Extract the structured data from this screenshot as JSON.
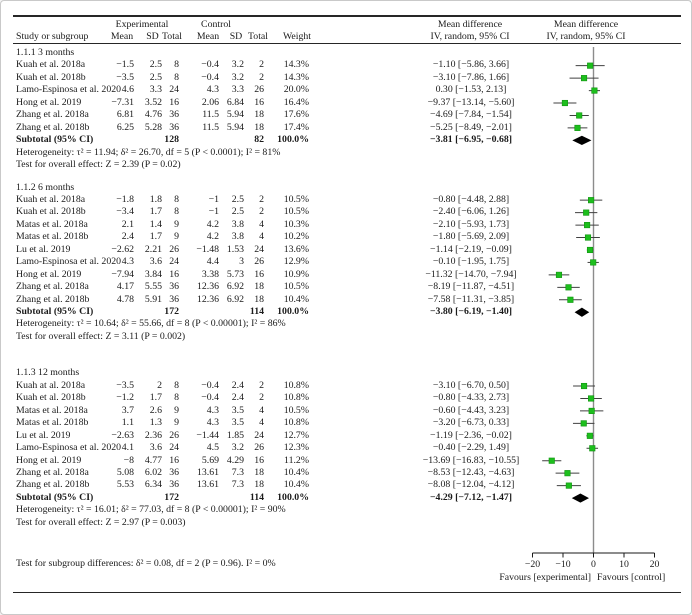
{
  "header": {
    "study_col": "Study or subgroup",
    "experimental": "Experimental",
    "control": "Control",
    "mean": "Mean",
    "sd": "SD",
    "total": "Total",
    "weight": "Weight",
    "md_title": "Mean difference",
    "md_sub": "IV, random, 95% CI"
  },
  "footer": {
    "subgroup_test": "Test for subgroup differences: δ² = 0.08, df = 2 (P = 0.96). I² = 0%",
    "favours_left": "Favours [experimental]",
    "favours_right": "Favours [control]"
  },
  "chart_data": {
    "type": "scatter",
    "variant": "forest-plot-mean-difference",
    "effect_measure": "Mean difference IV, random, 95% CI",
    "xlim": [
      -20,
      20
    ],
    "x_ticks": [
      -20,
      -10,
      0,
      10,
      20
    ],
    "zero_line": 0,
    "colors": {
      "marker": "#1dbf1d",
      "marker_edge": "#129312",
      "diamond": "#000000",
      "zero_line": "#8c8c8c",
      "ci_line": "#404040",
      "axis": "#1a1a1a"
    },
    "groups": [
      {
        "label": "1.1.1 3 months",
        "studies": [
          {
            "study": "Kuah et al. 2018a",
            "e_mean": "−1.5",
            "e_sd": "2.5",
            "e_total": "8",
            "c_mean": "−0.4",
            "c_sd": "3.2",
            "c_total": "2",
            "weight": "14.3%",
            "ci": "−1.10 [−5.86, 3.66]",
            "md": -1.1,
            "lo": -5.86,
            "hi": 3.66
          },
          {
            "study": "Kuah et al. 2018b",
            "e_mean": "−3.5",
            "e_sd": "2.5",
            "e_total": "8",
            "c_mean": "−0.4",
            "c_sd": "3.2",
            "c_total": "2",
            "weight": "14.3%",
            "ci": "−3.10 [−7.86, 1.66]",
            "md": -3.1,
            "lo": -7.86,
            "hi": 1.66
          },
          {
            "study": "Lamo-Espinosa et al. 2020",
            "e_mean": "4.6",
            "e_sd": "3.3",
            "e_total": "24",
            "c_mean": "4.3",
            "c_sd": "3.3",
            "c_total": "26",
            "weight": "20.0%",
            "ci": "0.30 [−1.53, 2.13]",
            "md": 0.3,
            "lo": -1.53,
            "hi": 2.13
          },
          {
            "study": "Hong et al. 2019",
            "e_mean": "−7.31",
            "e_sd": "3.52",
            "e_total": "16",
            "c_mean": "2.06",
            "c_sd": "6.84",
            "c_total": "16",
            "weight": "16.4%",
            "ci": "−9.37 [−13.14, −5.60]",
            "md": -9.37,
            "lo": -13.14,
            "hi": -5.6
          },
          {
            "study": "Zhang et al. 2018a",
            "e_mean": "6.81",
            "e_sd": "4.76",
            "e_total": "36",
            "c_mean": "11.5",
            "c_sd": "5.94",
            "c_total": "18",
            "weight": "17.6%",
            "ci": "−4.69 [−7.84, −1.54]",
            "md": -4.69,
            "lo": -7.84,
            "hi": -1.54
          },
          {
            "study": "Zhang et al. 2018b",
            "e_mean": "6.25",
            "e_sd": "5.28",
            "e_total": "36",
            "c_mean": "11.5",
            "c_sd": "5.94",
            "c_total": "18",
            "weight": "17.4%",
            "ci": "−5.25 [−8.49, −2.01]",
            "md": -5.25,
            "lo": -8.49,
            "hi": -2.01
          }
        ],
        "subtotal": {
          "label": "Subtotal (95% CI)",
          "e_total": "128",
          "c_total": "82",
          "weight": "100.0%",
          "ci": "−3.81 [−6.95, −0.68]",
          "md": -3.81,
          "lo": -6.95,
          "hi": -0.68
        },
        "heterogeneity": "Heterogeneity: τ² = 11.94; δ² = 26.70, df = 5 (P < 0.0001); I² = 81%",
        "overall": "Test for overall effect: Z = 2.39 (P = 0.02)"
      },
      {
        "label": "1.1.2 6 months",
        "studies": [
          {
            "study": "Kuah et al. 2018a",
            "e_mean": "−1.8",
            "e_sd": "1.8",
            "e_total": "8",
            "c_mean": "−1",
            "c_sd": "2.5",
            "c_total": "2",
            "weight": "10.5%",
            "ci": "−0.80 [−4.48, 2.88]",
            "md": -0.8,
            "lo": -4.48,
            "hi": 2.88
          },
          {
            "study": "Kuah et al. 2018b",
            "e_mean": "−3.4",
            "e_sd": "1.7",
            "e_total": "8",
            "c_mean": "−1",
            "c_sd": "2.5",
            "c_total": "2",
            "weight": "10.5%",
            "ci": "−2.40 [−6.06, 1.26]",
            "md": -2.4,
            "lo": -6.06,
            "hi": 1.26
          },
          {
            "study": "Matas et al. 2018a",
            "e_mean": "2.1",
            "e_sd": "1.4",
            "e_total": "9",
            "c_mean": "4.2",
            "c_sd": "3.8",
            "c_total": "4",
            "weight": "10.3%",
            "ci": "−2.10 [−5.93, 1.73]",
            "md": -2.1,
            "lo": -5.93,
            "hi": 1.73
          },
          {
            "study": "Matas et al. 2018b",
            "e_mean": "2.4",
            "e_sd": "1.7",
            "e_total": "9",
            "c_mean": "4.2",
            "c_sd": "3.8",
            "c_total": "4",
            "weight": "10.2%",
            "ci": "−1.80 [−5.69, 2.09]",
            "md": -1.8,
            "lo": -5.69,
            "hi": 2.09
          },
          {
            "study": "Lu et al. 2019",
            "e_mean": "−2.62",
            "e_sd": "2.21",
            "e_total": "26",
            "c_mean": "−1.48",
            "c_sd": "1.53",
            "c_total": "24",
            "weight": "13.6%",
            "ci": "−1.14 [−2.19, −0.09]",
            "md": -1.14,
            "lo": -2.19,
            "hi": -0.09
          },
          {
            "study": "Lamo-Espinosa et al. 2020",
            "e_mean": "4.3",
            "e_sd": "3.6",
            "e_total": "24",
            "c_mean": "4.4",
            "c_sd": "3",
            "c_total": "26",
            "weight": "12.9%",
            "ci": "−0.10 [−1.95, 1.75]",
            "md": -0.1,
            "lo": -1.95,
            "hi": 1.75
          },
          {
            "study": "Hong et al. 2019",
            "e_mean": "−7.94",
            "e_sd": "3.84",
            "e_total": "16",
            "c_mean": "3.38",
            "c_sd": "5.73",
            "c_total": "16",
            "weight": "10.9%",
            "ci": "−11.32 [−14.70, −7.94]",
            "md": -11.32,
            "lo": -14.7,
            "hi": -7.94
          },
          {
            "study": "Zhang et al. 2018a",
            "e_mean": "4.17",
            "e_sd": "5.55",
            "e_total": "36",
            "c_mean": "12.36",
            "c_sd": "6.92",
            "c_total": "18",
            "weight": "10.5%",
            "ci": "−8.19 [−11.87, −4.51]",
            "md": -8.19,
            "lo": -11.87,
            "hi": -4.51
          },
          {
            "study": "Zhang et al. 2018b",
            "e_mean": "4.78",
            "e_sd": "5.91",
            "e_total": "36",
            "c_mean": "12.36",
            "c_sd": "6.92",
            "c_total": "18",
            "weight": "10.4%",
            "ci": "−7.58 [−11.31, −3.85]",
            "md": -7.58,
            "lo": -11.31,
            "hi": -3.85
          }
        ],
        "subtotal": {
          "label": "Subtotal (95% CI)",
          "e_total": "172",
          "c_total": "114",
          "weight": "100.0%",
          "ci": "−3.80 [−6.19, −1.40]",
          "md": -3.8,
          "lo": -6.19,
          "hi": -1.4
        },
        "heterogeneity": "Heterogeneity: τ² = 10.64; δ² = 55.66, df = 8 (P < 0.00001); I² = 86%",
        "overall": "Test for overall effect: Z = 3.11 (P = 0.002)"
      },
      {
        "label": "1.1.3 12 months",
        "studies": [
          {
            "study": "Kuah at al. 2018a",
            "e_mean": "−3.5",
            "e_sd": "2",
            "e_total": "8",
            "c_mean": "−0.4",
            "c_sd": "2.4",
            "c_total": "2",
            "weight": "10.8%",
            "ci": "−3.10 [−6.70, 0.50]",
            "md": -3.1,
            "lo": -6.7,
            "hi": 0.5
          },
          {
            "study": "Kuah et al. 2018b",
            "e_mean": "−1.2",
            "e_sd": "1.7",
            "e_total": "8",
            "c_mean": "−0.4",
            "c_sd": "2.4",
            "c_total": "2",
            "weight": "10.8%",
            "ci": "−0.80 [−4.33, 2.73]",
            "md": -0.8,
            "lo": -4.33,
            "hi": 2.73
          },
          {
            "study": "Matas et al. 2018a",
            "e_mean": "3.7",
            "e_sd": "2.6",
            "e_total": "9",
            "c_mean": "4.3",
            "c_sd": "3.5",
            "c_total": "4",
            "weight": "10.5%",
            "ci": "−0.60 [−4.43, 3.23]",
            "md": -0.6,
            "lo": -4.43,
            "hi": 3.23
          },
          {
            "study": "Matas et al. 2018b",
            "e_mean": "1.1",
            "e_sd": "1.3",
            "e_total": "9",
            "c_mean": "4.3",
            "c_sd": "3.5",
            "c_total": "4",
            "weight": "10.8%",
            "ci": "−3.20 [−6.73, 0.33]",
            "md": -3.2,
            "lo": -6.73,
            "hi": 0.33
          },
          {
            "study": "Lu et al. 2019",
            "e_mean": "−2.63",
            "e_sd": "2.36",
            "e_total": "26",
            "c_mean": "−1.44",
            "c_sd": "1.85",
            "c_total": "24",
            "weight": "12.7%",
            "ci": "−1.19 [−2.36, −0.02]",
            "md": -1.19,
            "lo": -2.36,
            "hi": -0.02
          },
          {
            "study": "Lamo-Espinosa et al. 2020",
            "e_mean": "4.1",
            "e_sd": "3.6",
            "e_total": "24",
            "c_mean": "4.5",
            "c_sd": "3.2",
            "c_total": "26",
            "weight": "12.3%",
            "ci": "−0.40 [−2.29, 1.49]",
            "md": -0.4,
            "lo": -2.29,
            "hi": 1.49
          },
          {
            "study": "Hong et al. 2019",
            "e_mean": "−8",
            "e_sd": "4.77",
            "e_total": "16",
            "c_mean": "5.69",
            "c_sd": "4.29",
            "c_total": "16",
            "weight": "11.2%",
            "ci": "−13.69 [−16.83, −10.55]",
            "md": -13.69,
            "lo": -16.83,
            "hi": -10.55
          },
          {
            "study": "Zhang et al. 2018a",
            "e_mean": "5.08",
            "e_sd": "6.02",
            "e_total": "36",
            "c_mean": "13.61",
            "c_sd": "7.3",
            "c_total": "18",
            "weight": "10.4%",
            "ci": "−8.53 [−12.43, −4.63]",
            "md": -8.53,
            "lo": -12.43,
            "hi": -4.63
          },
          {
            "study": "Zhang et al. 2018b",
            "e_mean": "5.53",
            "e_sd": "6.34",
            "e_total": "36",
            "c_mean": "13.61",
            "c_sd": "7.3",
            "c_total": "18",
            "weight": "10.4%",
            "ci": "−8.08 [−12.04, −4.12]",
            "md": -8.08,
            "lo": -12.04,
            "hi": -4.12
          }
        ],
        "subtotal": {
          "label": "Subtotal (95% CI)",
          "e_total": "172",
          "c_total": "114",
          "weight": "100.0%",
          "ci": "−4.29 [−7.12, −1.47]",
          "md": -4.29,
          "lo": -7.12,
          "hi": -1.47
        },
        "heterogeneity": "Heterogeneity: τ² = 16.01; δ² = 77.03, df = 8 (P < 0.00001); I² = 90%",
        "overall": "Test for overall effect: Z = 2.97 (P = 0.003)"
      }
    ]
  }
}
